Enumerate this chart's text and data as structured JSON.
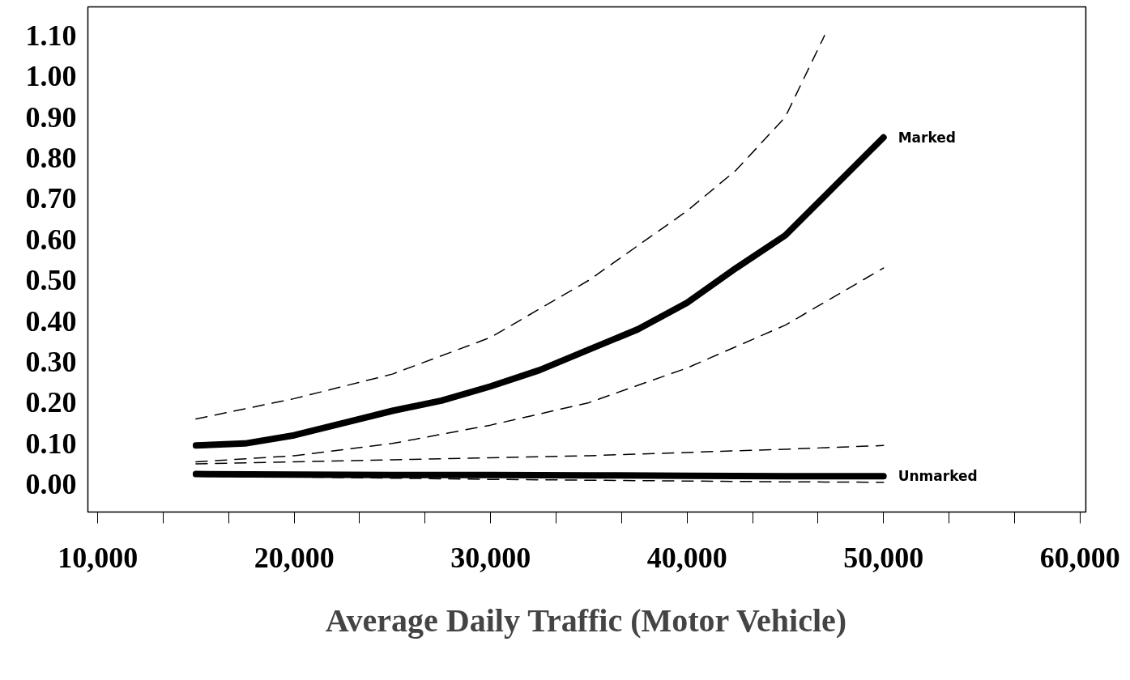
{
  "chart_data": {
    "type": "line",
    "xlabel": "Average Daily Traffic (Motor Vehicle)",
    "xlim": [
      9500,
      60300
    ],
    "ylim": [
      -0.068,
      1.17
    ],
    "xticks": [
      {
        "value": 10000,
        "label": "10,000"
      },
      {
        "value": 13333,
        "label": null
      },
      {
        "value": 16667,
        "label": null
      },
      {
        "value": 20000,
        "label": "20,000"
      },
      {
        "value": 23333,
        "label": null
      },
      {
        "value": 26667,
        "label": null
      },
      {
        "value": 30000,
        "label": "30,000"
      },
      {
        "value": 33333,
        "label": null
      },
      {
        "value": 36667,
        "label": null
      },
      {
        "value": 40000,
        "label": "40,000"
      },
      {
        "value": 43333,
        "label": null
      },
      {
        "value": 46667,
        "label": null
      },
      {
        "value": 50000,
        "label": "50,000"
      },
      {
        "value": 53333,
        "label": null
      },
      {
        "value": 56667,
        "label": null
      },
      {
        "value": 60000,
        "label": "60,000"
      }
    ],
    "yticks": [
      {
        "value": 0,
        "label": "0.00"
      },
      {
        "value": 0.1,
        "label": "0.10"
      },
      {
        "value": 0.2,
        "label": "0.20"
      },
      {
        "value": 0.3,
        "label": "0.30"
      },
      {
        "value": 0.4,
        "label": "0.40"
      },
      {
        "value": 0.5,
        "label": "0.50"
      },
      {
        "value": 0.6,
        "label": "0.60"
      },
      {
        "value": 0.7,
        "label": "0.70"
      },
      {
        "value": 0.8,
        "label": "0.80"
      },
      {
        "value": 0.9,
        "label": "0.90"
      },
      {
        "value": 1.0,
        "label": "1.00"
      },
      {
        "value": 1.1,
        "label": "1.10"
      }
    ],
    "grid": false,
    "legend": false,
    "marker": "none",
    "series": [
      {
        "name": "Marked",
        "color": "#000000",
        "line_style": "solid",
        "x": [
          15000,
          17500,
          20000,
          22500,
          25000,
          27500,
          30000,
          32500,
          35000,
          37500,
          40000,
          42500,
          45000,
          47500,
          50000
        ],
        "values": [
          0.095,
          0.1,
          0.12,
          0.15,
          0.18,
          0.205,
          0.24,
          0.28,
          0.33,
          0.38,
          0.445,
          0.53,
          0.61,
          0.73,
          0.85
        ]
      },
      {
        "color": "#000000",
        "line_style": "dashed",
        "x": [
          15000,
          20000,
          25000,
          30000,
          35000,
          40000,
          42500,
          45000,
          47000
        ],
        "values": [
          0.16,
          0.21,
          0.27,
          0.36,
          0.5,
          0.67,
          0.77,
          0.9,
          1.1
        ]
      },
      {
        "color": "#000000",
        "line_style": "dashed",
        "x": [
          15000,
          20000,
          25000,
          30000,
          35000,
          40000,
          45000,
          50000
        ],
        "values": [
          0.055,
          0.07,
          0.1,
          0.145,
          0.2,
          0.285,
          0.39,
          0.53
        ]
      },
      {
        "name": "Unmarked",
        "color": "#000000",
        "line_style": "solid",
        "x": [
          15000,
          20000,
          25000,
          30000,
          35000,
          40000,
          45000,
          50000
        ],
        "values": [
          0.025,
          0.024,
          0.023,
          0.023,
          0.022,
          0.021,
          0.02,
          0.02
        ]
      },
      {
        "color": "#000000",
        "line_style": "dashed",
        "x": [
          15000,
          20000,
          25000,
          30000,
          35000,
          40000,
          45000,
          50000
        ],
        "values": [
          0.05,
          0.055,
          0.06,
          0.065,
          0.07,
          0.078,
          0.086,
          0.095
        ]
      },
      {
        "color": "#000000",
        "line_style": "dashed",
        "x": [
          15000,
          20000,
          25000,
          30000,
          35000,
          40000,
          45000,
          50000
        ],
        "values": [
          0.02,
          0.018,
          0.015,
          0.012,
          0.01,
          0.008,
          0.006,
          0.005
        ]
      }
    ]
  }
}
